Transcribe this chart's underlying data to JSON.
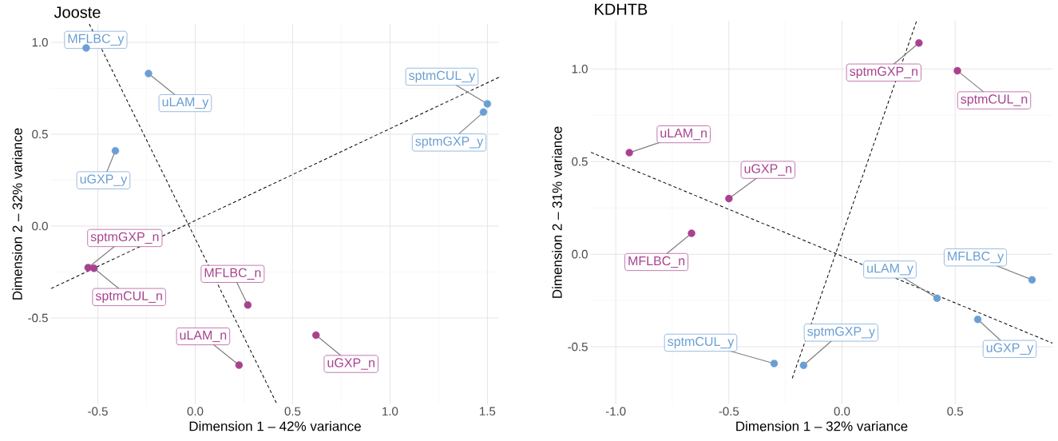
{
  "chart_data": [
    {
      "type": "scatter",
      "title": "Jooste",
      "xlabel": "Dimension 1 – 42% variance",
      "ylabel": "Dimension 2 – 32% variance",
      "xlim": [
        -0.74,
        1.56
      ],
      "ylim": [
        -0.97,
        1.1
      ],
      "xticks": [
        {
          "value": -0.5,
          "label": "-0.5"
        },
        {
          "value": 0,
          "label": "0.0"
        },
        {
          "value": 0.5,
          "label": "0.5"
        },
        {
          "value": 1,
          "label": "1.0"
        },
        {
          "value": 1.5,
          "label": "1.5"
        }
      ],
      "yticks": [
        {
          "value": -0.5,
          "label": "-0.5"
        },
        {
          "value": 0,
          "label": "0.0"
        },
        {
          "value": 0.5,
          "label": "0.5"
        },
        {
          "value": 1,
          "label": "1.0"
        }
      ],
      "grid": true,
      "marker": "circle",
      "series": [
        {
          "color": "#6a9fd4",
          "x": [
            -0.56,
            -0.24,
            -0.41,
            1.5,
            1.48
          ],
          "values": [
            0.97,
            0.83,
            0.41,
            0.665,
            0.62
          ]
        },
        {
          "color": "#a8428f",
          "x": [
            -0.55,
            -0.52,
            0.27,
            0.225,
            0.62
          ],
          "values": [
            -0.226,
            -0.23,
            -0.43,
            -0.757,
            -0.594
          ]
        },
        {
          "type": "line",
          "color": "#000000",
          "line_style": "dashed",
          "marker": "none",
          "x": [
            -0.544,
            0.42
          ],
          "values": [
            1.1,
            -0.97
          ]
        },
        {
          "type": "line",
          "color": "#000000",
          "line_style": "dashed",
          "marker": "none",
          "x": [
            -0.74,
            1.56
          ],
          "values": [
            -0.34,
            0.81
          ]
        }
      ],
      "annotations": [
        {
          "text": "MFLBC_y",
          "x": -0.56,
          "y": 0.97
        },
        {
          "text": "uLAM_y",
          "x": -0.24,
          "y": 0.83
        },
        {
          "text": "uGXP_y",
          "x": -0.41,
          "y": 0.41
        },
        {
          "text": "sptmCUL_y",
          "x": 1.5,
          "y": 0.665
        },
        {
          "text": "sptmGXP_y",
          "x": 1.48,
          "y": 0.62
        },
        {
          "text": "sptmGXP_n",
          "x": -0.55,
          "y": -0.226
        },
        {
          "text": "sptmCUL_n",
          "x": -0.52,
          "y": -0.23
        },
        {
          "text": "MFLBC_n",
          "x": 0.27,
          "y": -0.43
        },
        {
          "text": "uLAM_n",
          "x": 0.225,
          "y": -0.757
        },
        {
          "text": "uGXP_n",
          "x": 0.62,
          "y": -0.594
        }
      ]
    },
    {
      "type": "scatter",
      "title": "KDHTB",
      "xlabel": "Dimension 1 – 32% variance",
      "ylabel": "Dimension 2 – 31% variance",
      "xlim": [
        -1.11,
        0.93
      ],
      "ylim": [
        -0.81,
        1.26
      ],
      "xticks": [
        {
          "value": -1,
          "label": "-1.0"
        },
        {
          "value": -0.5,
          "label": "-0.5"
        },
        {
          "value": 0,
          "label": "0.0"
        },
        {
          "value": 0.5,
          "label": "0.5"
        }
      ],
      "yticks": [
        {
          "value": -0.5,
          "label": "-0.5"
        },
        {
          "value": 0,
          "label": "0.0"
        },
        {
          "value": 0.5,
          "label": "0.5"
        },
        {
          "value": 1,
          "label": "1.0"
        }
      ],
      "grid": true,
      "marker": "circle",
      "series": [
        {
          "color": "#a8428f",
          "x": [
            0.34,
            0.51,
            -0.94,
            -0.5,
            -0.665
          ],
          "values": [
            1.14,
            0.99,
            0.548,
            0.3,
            0.113
          ]
        },
        {
          "color": "#6a9fd4",
          "x": [
            0.84,
            0.42,
            0.6,
            -0.17,
            -0.3
          ],
          "values": [
            -0.138,
            -0.238,
            -0.352,
            -0.6,
            -0.59
          ]
        },
        {
          "type": "line",
          "color": "#000000",
          "line_style": "dashed",
          "marker": "none",
          "x": [
            -0.22,
            0.33
          ],
          "values": [
            -0.67,
            1.26
          ]
        },
        {
          "type": "line",
          "color": "#000000",
          "line_style": "dashed",
          "marker": "none",
          "x": [
            -1.11,
            0.93
          ],
          "values": [
            0.55,
            -0.48
          ]
        }
      ],
      "annotations": [
        {
          "text": "sptmGXP_n",
          "x": 0.34,
          "y": 1.14
        },
        {
          "text": "sptmCUL_n",
          "x": 0.51,
          "y": 0.99
        },
        {
          "text": "uLAM_n",
          "x": -0.94,
          "y": 0.548
        },
        {
          "text": "uGXP_n",
          "x": -0.5,
          "y": 0.3
        },
        {
          "text": "MFLBC_n",
          "x": -0.665,
          "y": 0.113
        },
        {
          "text": "MFLBC_y",
          "x": 0.84,
          "y": -0.138
        },
        {
          "text": "uLAM_y",
          "x": 0.42,
          "y": -0.238
        },
        {
          "text": "uGXP_y",
          "x": 0.6,
          "y": -0.352
        },
        {
          "text": "sptmGXP_y",
          "x": -0.17,
          "y": -0.6
        },
        {
          "text": "sptmCUL_y",
          "x": -0.3,
          "y": -0.59
        }
      ]
    }
  ]
}
